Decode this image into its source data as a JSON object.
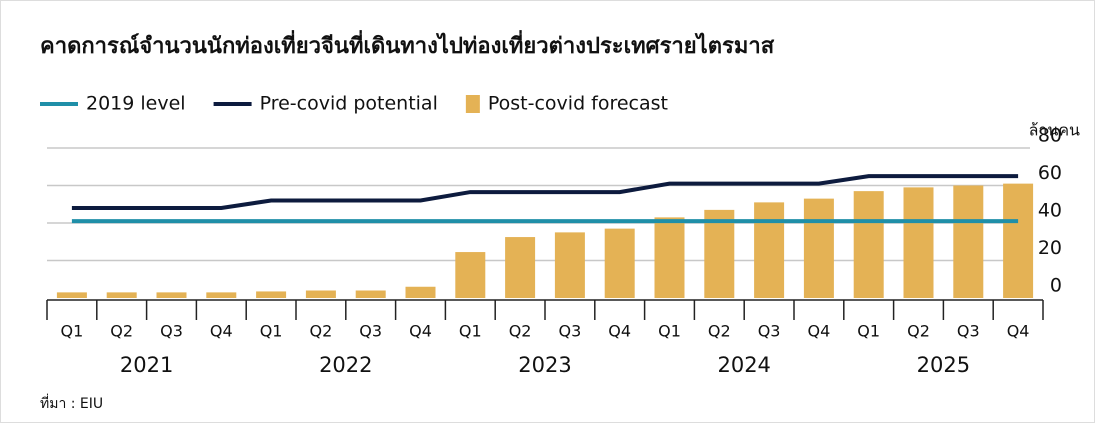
{
  "chart_data": {
    "type": "bar",
    "title": "คาดการณ์จำนวนนักท่องเที่ยวจีนที่เดินทางไปท่องเที่ยวต่างประเทศรายไตรมาส",
    "y_label": "ล้านคน",
    "source": "ที่มา : EIU",
    "categories": [
      "Q1",
      "Q2",
      "Q3",
      "Q4",
      "Q1",
      "Q2",
      "Q3",
      "Q4",
      "Q1",
      "Q2",
      "Q3",
      "Q4",
      "Q1",
      "Q2",
      "Q3",
      "Q4",
      "Q1",
      "Q2",
      "Q3",
      "Q4"
    ],
    "years": [
      "2021",
      "2022",
      "2023",
      "2024",
      "2025"
    ],
    "series": [
      {
        "name": "2019 level",
        "type": "line",
        "color": "#1f8fa8",
        "values": [
          41,
          41,
          41,
          41,
          41,
          41,
          41,
          41,
          41,
          41,
          41,
          41,
          41,
          41,
          41,
          41,
          41,
          41,
          41,
          41
        ]
      },
      {
        "name": "Pre-covid potential",
        "type": "line",
        "color": "#0d1b3e",
        "values": [
          48,
          48,
          48,
          48,
          52,
          52,
          52,
          52,
          56.5,
          56.5,
          56.5,
          56.5,
          61,
          61,
          61,
          61,
          65,
          65,
          65,
          65
        ]
      },
      {
        "name": "Post-covid forecast",
        "type": "bar",
        "color": "#e4b255",
        "values": [
          3,
          3,
          3,
          3,
          3.5,
          4,
          4,
          6,
          24.5,
          32.5,
          35,
          37,
          43,
          47,
          51,
          53,
          57,
          59,
          60,
          61
        ]
      }
    ],
    "ylim": [
      0,
      80
    ],
    "yticks": [
      0,
      20,
      40,
      60,
      80
    ],
    "grid": true
  }
}
